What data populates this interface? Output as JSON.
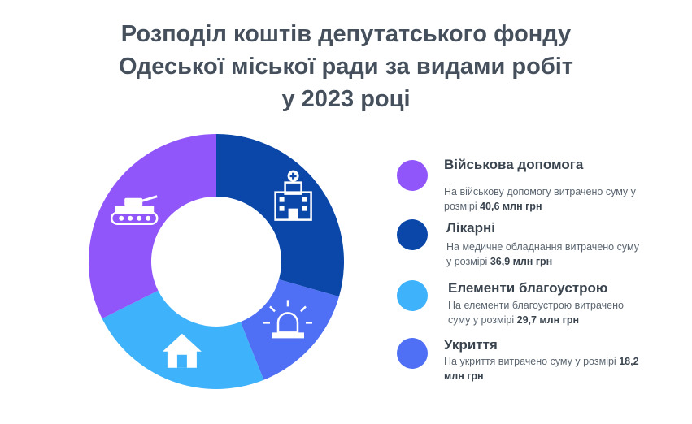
{
  "title_lines": [
    "Розподіл коштів депутатського фонду",
    "Одеської міської ради за видами робіт",
    "у 2023 році"
  ],
  "chart_data": {
    "type": "pie",
    "donut": true,
    "title": "Розподіл коштів депутатського фонду Одеської міської ради за видами робіт у 2023 році",
    "unit": "млн грн",
    "slices": [
      {
        "name": "Лікарні",
        "value": 36.9,
        "color": "#0a47a9",
        "icon": "hospital-icon"
      },
      {
        "name": "Укриття",
        "value": 18.2,
        "color": "#4f6ff5",
        "icon": "siren-icon"
      },
      {
        "name": "Елементи благоустрою",
        "value": 29.7,
        "color": "#3eb2fa",
        "icon": "house-icon"
      },
      {
        "name": "Військова допомога",
        "value": 40.6,
        "color": "#9156fa",
        "icon": "tank-icon"
      }
    ]
  },
  "legend": [
    {
      "title": "Військова допомога",
      "desc": "На військову допомогу витрачено суму у розмірі",
      "amount": "40,6 млн грн",
      "color": "#9156fa"
    },
    {
      "title": "Лікарні",
      "desc": "На медичне обладнання витрачено суму у розмірі",
      "amount": "36,9 млн грн",
      "color": "#0a47a9"
    },
    {
      "title": "Елементи благоустрою",
      "desc": "На елементи благоустрою витрачено суму у розмірі",
      "amount": "29,7 млн грн",
      "color": "#3eb2fa"
    },
    {
      "title": "Укриття",
      "desc": "На укриття витрачено суму у розмірі",
      "amount": "18,2 млн грн",
      "color": "#4f6ff5"
    }
  ]
}
